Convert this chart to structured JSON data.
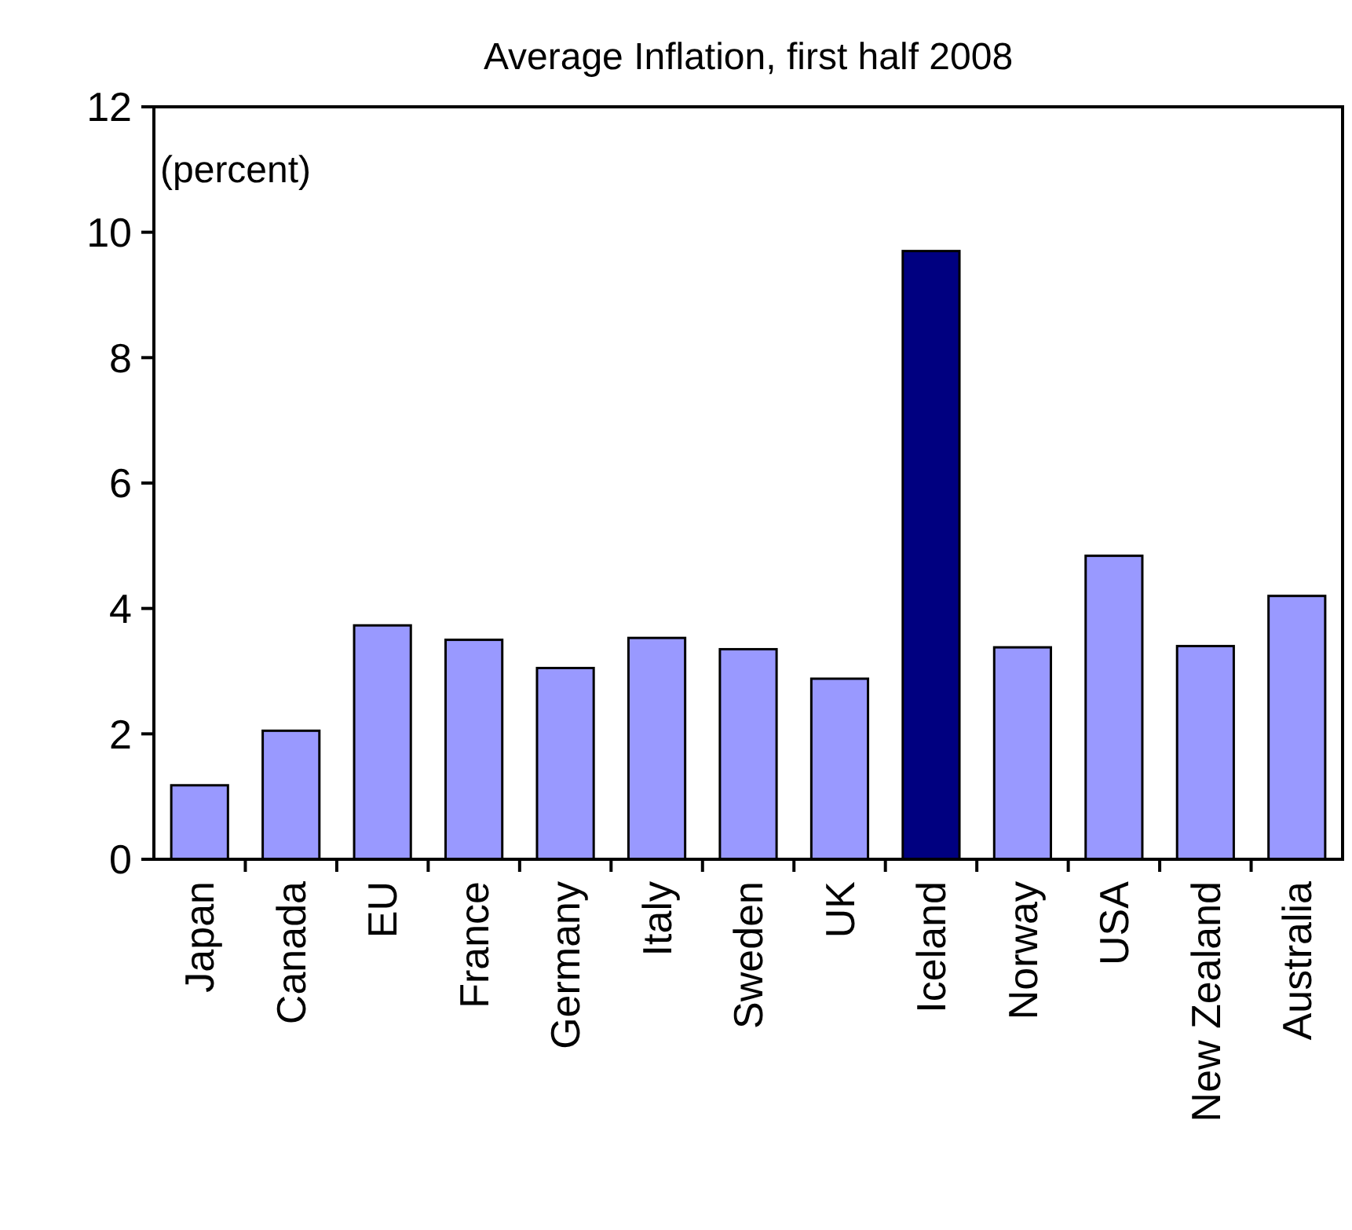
{
  "chart_data": {
    "type": "bar",
    "title": "Average Inflation, first half 2008",
    "ylabel": "(percent)",
    "categories": [
      "Japan",
      "Canada",
      "EU",
      "France",
      "Germany",
      "Italy",
      "Sweden",
      "UK",
      "Iceland",
      "Norway",
      "USA",
      "New Zealand",
      "Australia"
    ],
    "values": [
      1.18,
      2.05,
      3.73,
      3.5,
      3.05,
      3.53,
      3.35,
      2.88,
      9.7,
      3.38,
      4.84,
      3.4,
      4.2
    ],
    "colors": [
      "#9999ff",
      "#9999ff",
      "#9999ff",
      "#9999ff",
      "#9999ff",
      "#9999ff",
      "#9999ff",
      "#9999ff",
      "#000080",
      "#9999ff",
      "#9999ff",
      "#9999ff",
      "#9999ff"
    ],
    "ylim": [
      0,
      12
    ],
    "yticks": [
      0,
      2,
      4,
      6,
      8,
      10,
      12
    ],
    "grid": false
  }
}
